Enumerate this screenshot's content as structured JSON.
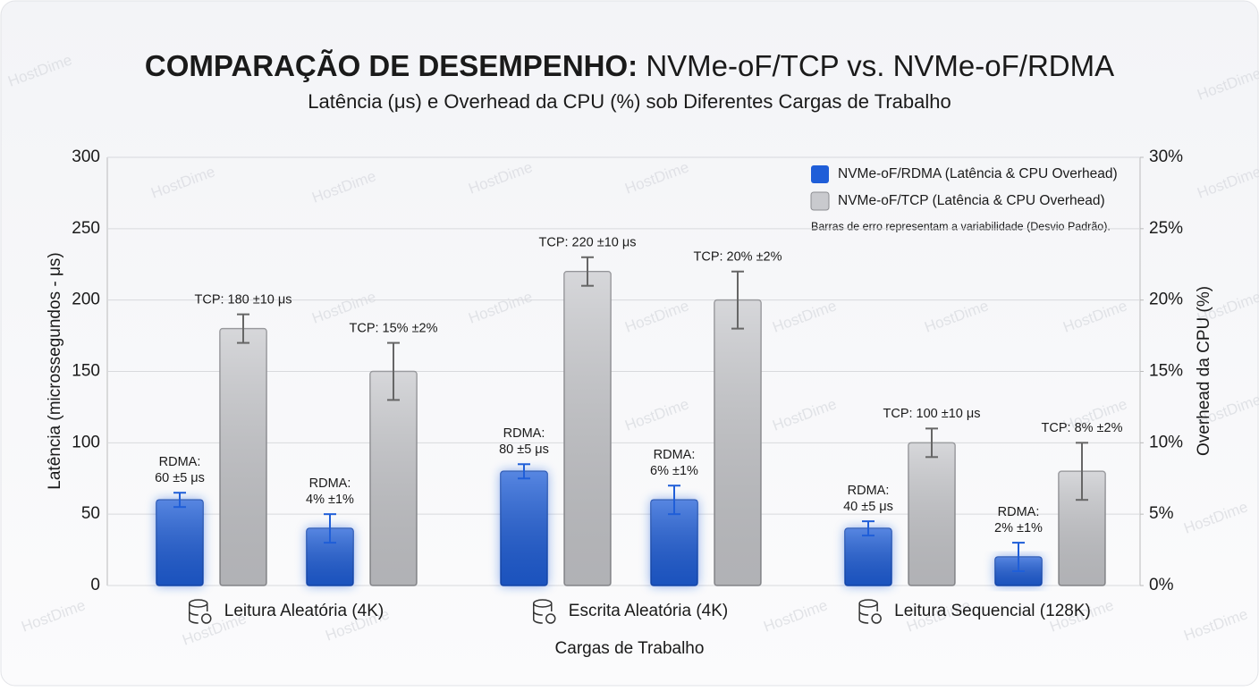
{
  "chart_data": {
    "type": "bar",
    "title": [
      "COMPARAÇÃO DE DESEMPENHO:",
      "NVMe-oF/TCP vs. NVMe-oF/RDMA"
    ],
    "subtitle": "Latência (μs) e Overhead da CPU (%) sob Diferentes Cargas de Trabalho",
    "xlabel": "Cargas de Trabalho",
    "ylabel": "Latência (microssegundos - μs)",
    "y2label": "Overhead da CPU (%)",
    "categories": [
      "Leitura Aleatória (4K)",
      "Escrita Aleatória (4K)",
      "Leitura Sequencial (128K)"
    ],
    "series": [
      {
        "name": "NVMe-oF/RDMA (Latência & CPU Overhead)",
        "color": "#1f5ed8",
        "values": [
          60,
          80,
          40
        ],
        "errors": [
          5,
          5,
          5
        ],
        "value_labels": [
          [
            "RDMA:",
            "60 ±5 μs"
          ],
          [
            "RDMA:",
            "80 ±5 μs"
          ],
          [
            "RDMA:",
            "40 ±5 μs"
          ]
        ],
        "cpu": {
          "axis": "y2",
          "values": [
            4,
            6,
            2
          ],
          "errors": [
            1,
            1,
            1
          ],
          "value_labels": [
            [
              "RDMA:",
              "4% ±1%"
            ],
            [
              "RDMA:",
              "6% ±1%"
            ],
            [
              "RDMA:",
              "2% ±1%"
            ]
          ]
        }
      },
      {
        "name": "NVMe-oF/TCP (Latência & CPU Overhead)",
        "color": "#c9cace",
        "values": [
          180,
          220,
          100
        ],
        "errors": [
          10,
          10,
          10
        ],
        "value_labels": [
          [
            "TCP: 180 ±10 μs"
          ],
          [
            "TCP: 220 ±10 μs"
          ],
          [
            "TCP: 100 ±10 μs"
          ]
        ],
        "cpu": {
          "axis": "y2",
          "values": [
            15,
            20,
            8
          ],
          "errors": [
            2,
            2,
            2
          ],
          "value_labels": [
            [
              "TCP: 15% ±2%"
            ],
            [
              "TCP: 20% ±2%"
            ],
            [
              "TCP: 8% ±2%"
            ]
          ]
        }
      }
    ],
    "legend_note": "Barras de erro representam a variabilidade (Desvio Padrão).",
    "legend": "upper right",
    "grid": true,
    "ylim": [
      0,
      300
    ],
    "yticks": [
      0,
      50,
      100,
      150,
      200,
      250,
      300
    ],
    "y2lim": [
      0,
      30
    ],
    "y2ticks": [
      {
        "value": 0,
        "label": "0%"
      },
      {
        "value": 5,
        "label": "5%"
      },
      {
        "value": 10,
        "label": "10%"
      },
      {
        "value": 15,
        "label": "15%"
      },
      {
        "value": 20,
        "label": "20%"
      },
      {
        "value": 25,
        "label": "25%"
      },
      {
        "value": 30,
        "label": "30%"
      }
    ],
    "watermark": "HostDime"
  }
}
